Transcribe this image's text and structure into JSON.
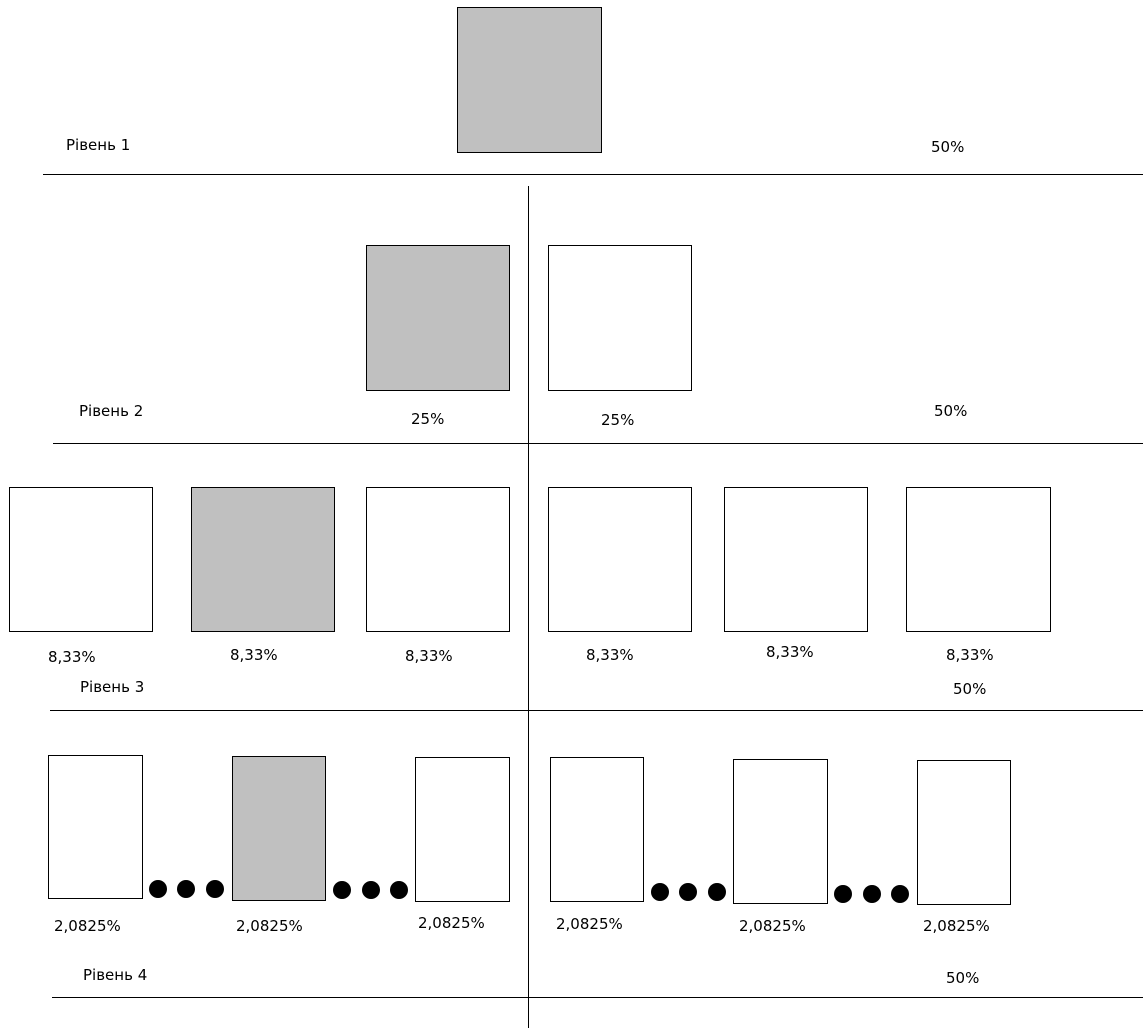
{
  "levels": [
    {
      "label": "Рівень 1",
      "right_pct": "50%"
    },
    {
      "label": "Рівень 2",
      "right_pct": "50%",
      "box_pcts": [
        "25%",
        "25%"
      ]
    },
    {
      "label": "Рівень 3",
      "right_pct": "50%",
      "box_pcts": [
        "8,33%",
        "8,33%",
        "8,33%",
        "8,33%",
        "8,33%",
        "8,33%"
      ]
    },
    {
      "label": "Рівень 4",
      "right_pct": "50%",
      "box_pcts": [
        "2,0825%",
        "2,0825%",
        "2,0825%",
        "2,0825%",
        "2,0825%",
        "2,0825%"
      ]
    }
  ],
  "colors": {
    "highlight": "#c0c0c0",
    "box": "#ffffff",
    "line": "#000000"
  }
}
